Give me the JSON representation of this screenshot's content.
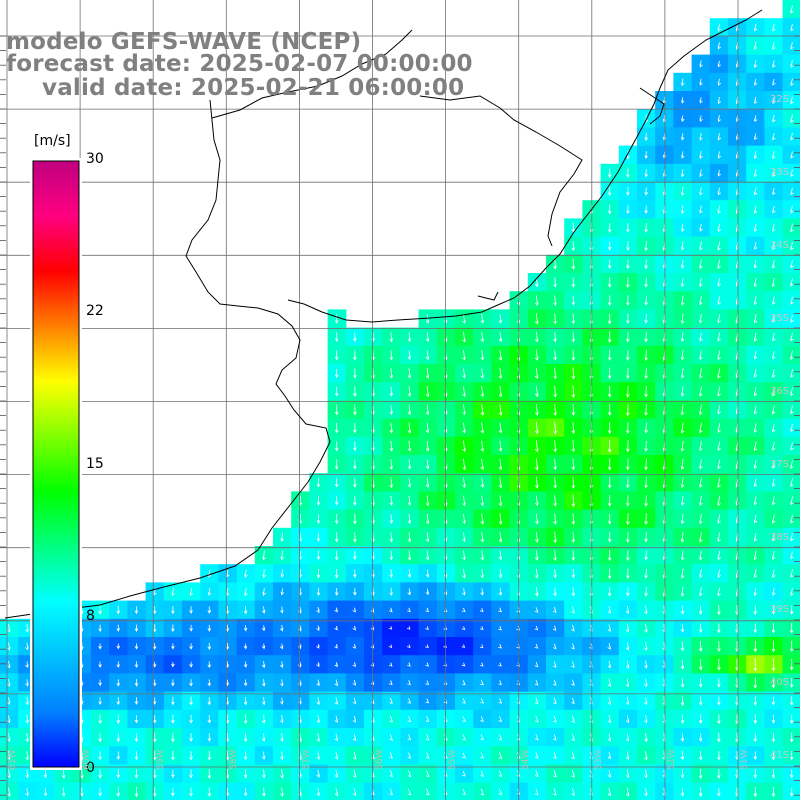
{
  "title": {
    "line1": "modelo GEFS-WAVE (NCEP)",
    "line2": "forecast date: 2025-02-07 00:00:00",
    "line3": "valid date: 2025-02-21 06:00:00"
  },
  "colorbar": {
    "unit": "[m/s]",
    "ticks": [
      "30",
      "22",
      "15",
      "8",
      "0"
    ],
    "colors": [
      "#0000ff",
      "#0080ff",
      "#00c0ff",
      "#00ffff",
      "#00ff80",
      "#00ff00",
      "#80ff00",
      "#ffff00",
      "#ff8000",
      "#ff0000",
      "#ff0080",
      "#c00080"
    ]
  },
  "lat_labels": [
    "32S",
    "33S",
    "34S",
    "35S",
    "36S",
    "37S",
    "38S",
    "39S",
    "40S",
    "41S"
  ],
  "lon_labels": [
    "61W",
    "60W",
    "59W",
    "58W",
    "57W",
    "56W",
    "55W",
    "54W",
    "53W",
    "52W",
    "51W"
  ],
  "colors": {
    "land": "#ffffff",
    "coastline": "#000000",
    "grid": "#6e6e6e",
    "arrows": "#ffffff",
    "title": "#808080"
  }
}
